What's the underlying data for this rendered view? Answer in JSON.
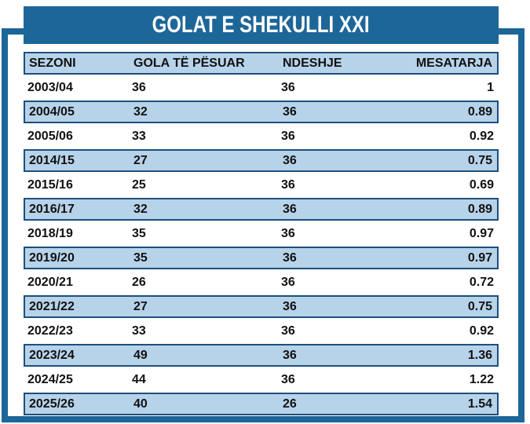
{
  "header": {
    "title": "GOLAT E SHEKULLI XXI"
  },
  "table": {
    "columns": [
      "SEZONI",
      "GOLA TË PËSUAR",
      "NDESHJE",
      "MESATARJA"
    ],
    "rows": [
      [
        "2003/04",
        "36",
        "36",
        "1"
      ],
      [
        "2004/05",
        "32",
        "36",
        "0.89"
      ],
      [
        "2005/06",
        "33",
        "36",
        "0.92"
      ],
      [
        "2014/15",
        "27",
        "36",
        "0.75"
      ],
      [
        "2015/16",
        "25",
        "36",
        "0.69"
      ],
      [
        "2016/17",
        "32",
        "36",
        "0.89"
      ],
      [
        "2018/19",
        "35",
        "36",
        "0.97"
      ],
      [
        "2019/20",
        "35",
        "36",
        "0.97"
      ],
      [
        "2020/21",
        "26",
        "36",
        "0.72"
      ],
      [
        "2021/22",
        "27",
        "36",
        "0.75"
      ],
      [
        "2022/23",
        "33",
        "36",
        "0.92"
      ],
      [
        "2023/24",
        "49",
        "36",
        "1.36"
      ],
      [
        "2024/25",
        "44",
        "36",
        "1.22"
      ],
      [
        "2025/26",
        "40",
        "26",
        "1.54"
      ]
    ]
  }
}
